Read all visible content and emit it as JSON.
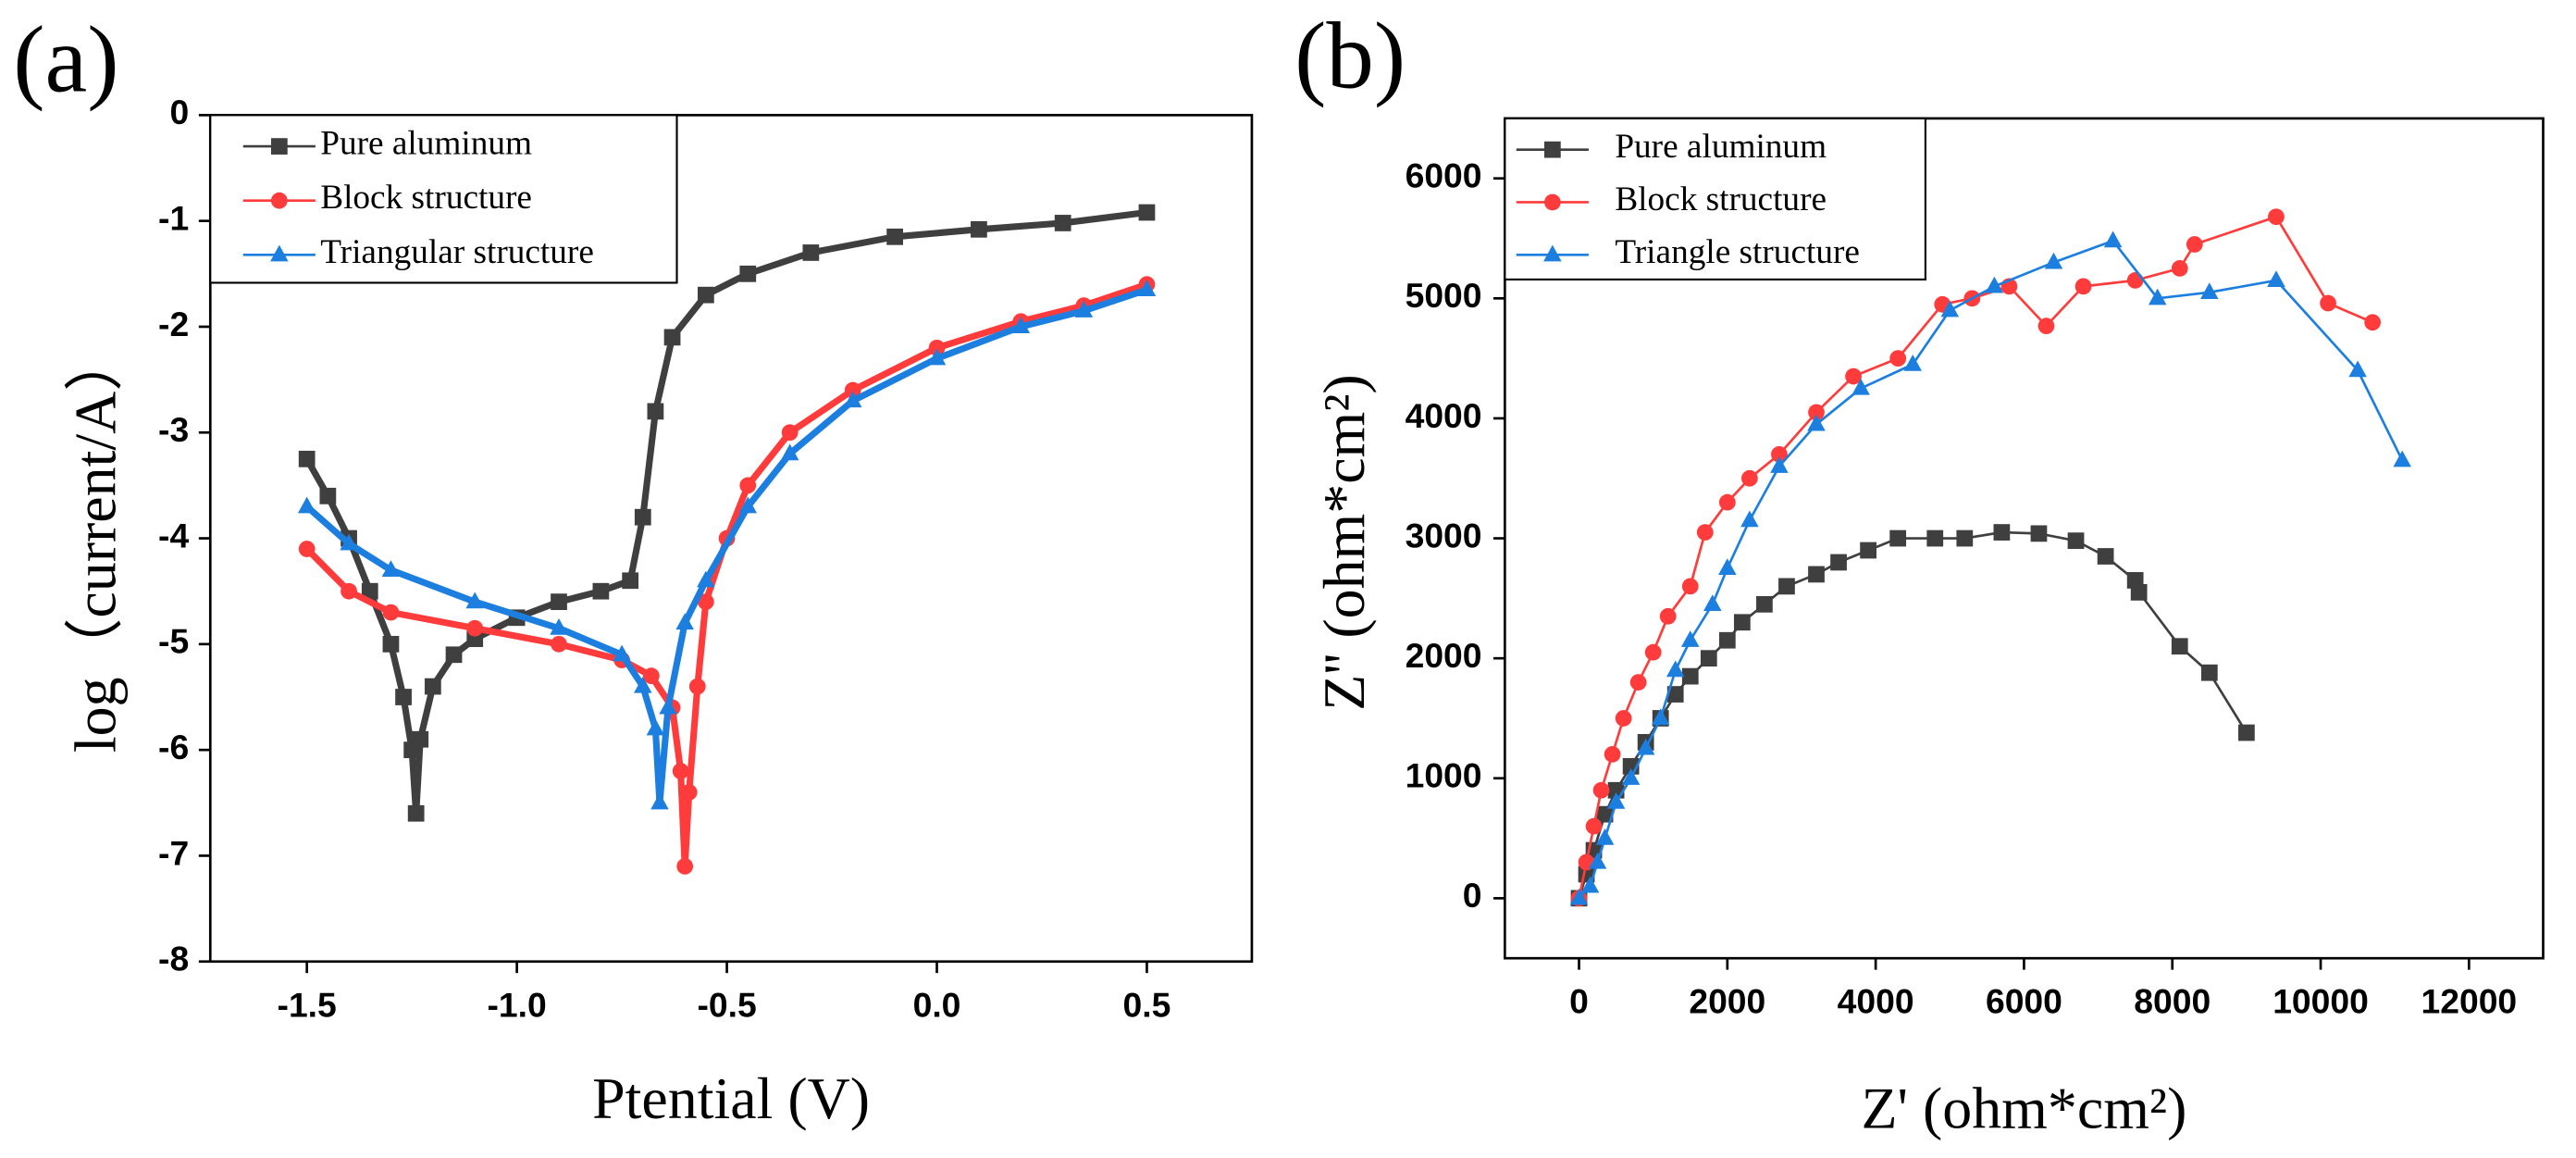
{
  "chart_data": [
    {
      "type": "line",
      "panel_label": "(a)",
      "xlabel": "Ptential (V)",
      "ylabel": "log（current/A）",
      "xlim": [
        -1.73,
        0.75
      ],
      "ylim": [
        -8,
        0
      ],
      "xticks": [
        -1.5,
        {
          "value": -1.0,
          "label": "-1.0"
        },
        -0.5,
        {
          "value": 0.0,
          "label": "0.0"
        },
        0.5
      ],
      "yticks": [
        0,
        -1,
        -2,
        -3,
        -4,
        -5,
        -6,
        -7,
        -8
      ],
      "legend": "upper left",
      "series": [
        {
          "name": "Pure aluminum",
          "color": "#3f3f3f",
          "marker": "square",
          "x": [
            -1.5,
            -1.45,
            -1.4,
            -1.35,
            -1.3,
            -1.27,
            -1.25,
            -1.24,
            -1.23,
            -1.2,
            -1.15,
            -1.1,
            -1.0,
            -0.9,
            -0.8,
            -0.73,
            -0.7,
            -0.67,
            -0.63,
            -0.55,
            -0.45,
            -0.3,
            -0.1,
            0.1,
            0.3,
            0.5
          ],
          "values": [
            -3.25,
            -3.6,
            -4.0,
            -4.5,
            -5.0,
            -5.5,
            -6.0,
            -6.6,
            -5.9,
            -5.4,
            -5.1,
            -4.95,
            -4.75,
            -4.6,
            -4.5,
            -4.4,
            -3.8,
            -2.8,
            -2.1,
            -1.7,
            -1.5,
            -1.3,
            -1.15,
            -1.08,
            -1.02,
            -0.92
          ]
        },
        {
          "name": "Block structure",
          "color": "#ff3b3b",
          "marker": "circle",
          "x": [
            -1.5,
            -1.4,
            -1.3,
            -1.1,
            -0.9,
            -0.75,
            -0.68,
            -0.63,
            -0.61,
            -0.6,
            -0.59,
            -0.57,
            -0.55,
            -0.5,
            -0.45,
            -0.35,
            -0.2,
            0.0,
            0.2,
            0.35,
            0.5
          ],
          "values": [
            -4.1,
            -4.5,
            -4.7,
            -4.85,
            -5.0,
            -5.15,
            -5.3,
            -5.6,
            -6.2,
            -7.1,
            -6.4,
            -5.4,
            -4.6,
            -4.0,
            -3.5,
            -3.0,
            -2.6,
            -2.2,
            -1.95,
            -1.8,
            -1.6
          ]
        },
        {
          "name": "Triangular structure",
          "color": "#1c7fe0",
          "marker": "triangle",
          "x": [
            -1.5,
            -1.4,
            -1.3,
            -1.1,
            -0.9,
            -0.75,
            -0.7,
            -0.67,
            -0.66,
            -0.64,
            -0.6,
            -0.55,
            -0.45,
            -0.35,
            -0.2,
            0.0,
            0.2,
            0.35,
            0.5
          ],
          "values": [
            -3.7,
            -4.05,
            -4.3,
            -4.6,
            -4.85,
            -5.1,
            -5.4,
            -5.8,
            -6.5,
            -5.6,
            -4.8,
            -4.4,
            -3.7,
            -3.2,
            -2.7,
            -2.3,
            -2.0,
            -1.85,
            -1.65
          ]
        }
      ]
    },
    {
      "type": "line",
      "panel_label": "(b)",
      "xlabel": "Z' (ohm*cm²)",
      "ylabel": "Z'' (ohm*cm²)",
      "xlim": [
        -1000,
        13000
      ],
      "ylim": [
        -500,
        6500
      ],
      "xticks": [
        0,
        2000,
        4000,
        6000,
        8000,
        10000,
        12000
      ],
      "yticks": [
        0,
        1000,
        2000,
        3000,
        4000,
        5000,
        6000
      ],
      "legend": "upper left",
      "series": [
        {
          "name": "Pure aluminum",
          "color": "#3f3f3f",
          "marker": "square",
          "x": [
            0,
            100,
            200,
            350,
            500,
            700,
            900,
            1100,
            1300,
            1500,
            1750,
            2000,
            2200,
            2500,
            2800,
            3200,
            3500,
            3900,
            4300,
            4800,
            5200,
            5700,
            6200,
            6700,
            7100,
            7500,
            7550,
            8100,
            8500,
            9000
          ],
          "values": [
            0,
            200,
            400,
            700,
            900,
            1100,
            1300,
            1500,
            1700,
            1850,
            2000,
            2150,
            2300,
            2450,
            2600,
            2700,
            2800,
            2900,
            3000,
            3000,
            3000,
            3050,
            3040,
            2980,
            2850,
            2650,
            2550,
            2100,
            1880,
            1380
          ]
        },
        {
          "name": "Block structure",
          "color": "#ff3b3b",
          "marker": "circle",
          "x": [
            0,
            100,
            200,
            300,
            450,
            600,
            800,
            1000,
            1200,
            1500,
            1700,
            2000,
            2300,
            2700,
            3200,
            3700,
            4300,
            4900,
            5300,
            5800,
            6300,
            6800,
            7500,
            8100,
            8300,
            9400,
            10100,
            10700
          ],
          "values": [
            0,
            300,
            600,
            900,
            1200,
            1500,
            1800,
            2050,
            2350,
            2600,
            3050,
            3300,
            3500,
            3700,
            4050,
            4350,
            4500,
            4950,
            5000,
            5100,
            4770,
            5100,
            5150,
            5250,
            5450,
            5680,
            4960,
            4800
          ]
        },
        {
          "name": "Triangle structure",
          "color": "#1c7fe0",
          "marker": "triangle",
          "x": [
            0,
            150,
            250,
            350,
            500,
            700,
            900,
            1100,
            1300,
            1500,
            1800,
            2000,
            2300,
            2700,
            3200,
            3800,
            4500,
            5000,
            5600,
            6400,
            7200,
            7800,
            8500,
            9400,
            10500,
            11100
          ],
          "values": [
            0,
            100,
            300,
            500,
            800,
            1000,
            1250,
            1500,
            1900,
            2150,
            2450,
            2750,
            3150,
            3600,
            3950,
            4250,
            4450,
            4900,
            5100,
            5300,
            5480,
            5000,
            5050,
            5150,
            4400,
            3650
          ]
        }
      ]
    }
  ]
}
